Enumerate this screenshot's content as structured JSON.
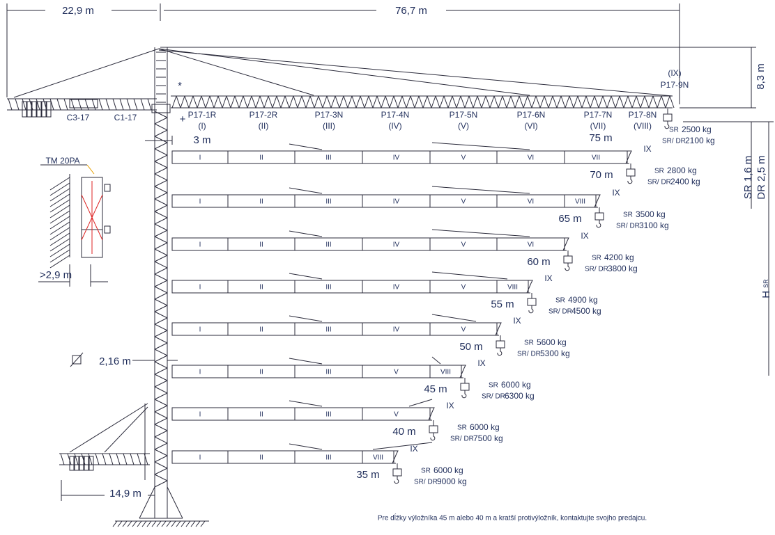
{
  "dimensions": {
    "counterjib_length": "22,9 m",
    "jib_length": "76,7 m",
    "tip_height": "8,3 m",
    "sr_clearance": "SR 1,6 m",
    "dr_clearance": "DR 2,5 m",
    "height_main": "H",
    "height_sub": "SR",
    "jib_offset": "3 m",
    "mast_width": "2,16 m",
    "anchor_distance": ">2,9 m",
    "base_counterjib": "14,9 m"
  },
  "anchor_label": "TM 20PA",
  "marks": {
    "star": "*",
    "plus": "+"
  },
  "counterjib_sections": [
    "C3-17",
    "C1-17"
  ],
  "jib_sections": [
    {
      "code": "P17-1R",
      "numeral": "(I)"
    },
    {
      "code": "P17-2R",
      "numeral": "(II)"
    },
    {
      "code": "P17-3N",
      "numeral": "(III)"
    },
    {
      "code": "P17-4N",
      "numeral": "(IV)"
    },
    {
      "code": "P17-5N",
      "numeral": "(V)"
    },
    {
      "code": "P17-6N",
      "numeral": "(VI)"
    },
    {
      "code": "P17-7N",
      "numeral": "(VII)"
    },
    {
      "code": "P17-8N",
      "numeral": "(VIII)"
    },
    {
      "code": "P17-9N",
      "numeral": "(IX)"
    }
  ],
  "configurations": [
    {
      "length": "75 m",
      "loads": [
        {
          "label": "SR",
          "value": "2500 kg"
        },
        {
          "label": "SR/ DR",
          "value": "2100 kg"
        }
      ]
    },
    {
      "length": "70 m",
      "sections": [
        "I",
        "II",
        "III",
        "IV",
        "V",
        "VI",
        "VII"
      ],
      "tip": "IX",
      "loads": [
        {
          "label": "SR",
          "value": "2800 kg"
        },
        {
          "label": "SR/ DR",
          "value": "2400 kg"
        }
      ]
    },
    {
      "length": "65 m",
      "sections": [
        "I",
        "II",
        "III",
        "IV",
        "V",
        "VI",
        "VIII"
      ],
      "tip": "IX",
      "loads": [
        {
          "label": "SR",
          "value": "3500 kg"
        },
        {
          "label": "SR/ DR",
          "value": "3100 kg"
        }
      ]
    },
    {
      "length": "60 m",
      "sections": [
        "I",
        "II",
        "III",
        "IV",
        "V",
        "VI"
      ],
      "tip": "IX",
      "loads": [
        {
          "label": "SR",
          "value": "4200 kg"
        },
        {
          "label": "SR/ DR",
          "value": "3800 kg"
        }
      ]
    },
    {
      "length": "55 m",
      "sections": [
        "I",
        "II",
        "III",
        "IV",
        "V",
        "VIII"
      ],
      "tip": "IX",
      "loads": [
        {
          "label": "SR",
          "value": "4900 kg"
        },
        {
          "label": "SR/ DR",
          "value": "4500 kg"
        }
      ]
    },
    {
      "length": "50 m",
      "sections": [
        "I",
        "II",
        "III",
        "IV",
        "V"
      ],
      "tip": "IX",
      "loads": [
        {
          "label": "SR",
          "value": "5600 kg"
        },
        {
          "label": "SR/ DR",
          "value": "5300 kg"
        }
      ]
    },
    {
      "length": "45 m",
      "sections": [
        "I",
        "II",
        "III",
        "V",
        "VIII"
      ],
      "tip": "IX",
      "loads": [
        {
          "label": "SR",
          "value": "6000 kg"
        },
        {
          "label": "SR/ DR",
          "value": "6300 kg"
        }
      ]
    },
    {
      "length": "40 m",
      "sections": [
        "I",
        "II",
        "III",
        "V"
      ],
      "tip": "IX",
      "loads": [
        {
          "label": "SR",
          "value": "6000 kg"
        },
        {
          "label": "SR/ DR",
          "value": "7500 kg"
        }
      ]
    },
    {
      "length": "35 m",
      "sections": [
        "I",
        "II",
        "III",
        "VIII"
      ],
      "tip": "IX",
      "loads": [
        {
          "label": "SR",
          "value": "6000 kg"
        },
        {
          "label": "SR/ DR",
          "value": "9000 kg"
        }
      ]
    }
  ],
  "note": "Pre dĺžky výložníka 45 m alebo 40 m a kratší protivýložník, kontaktujte svojho predajcu."
}
